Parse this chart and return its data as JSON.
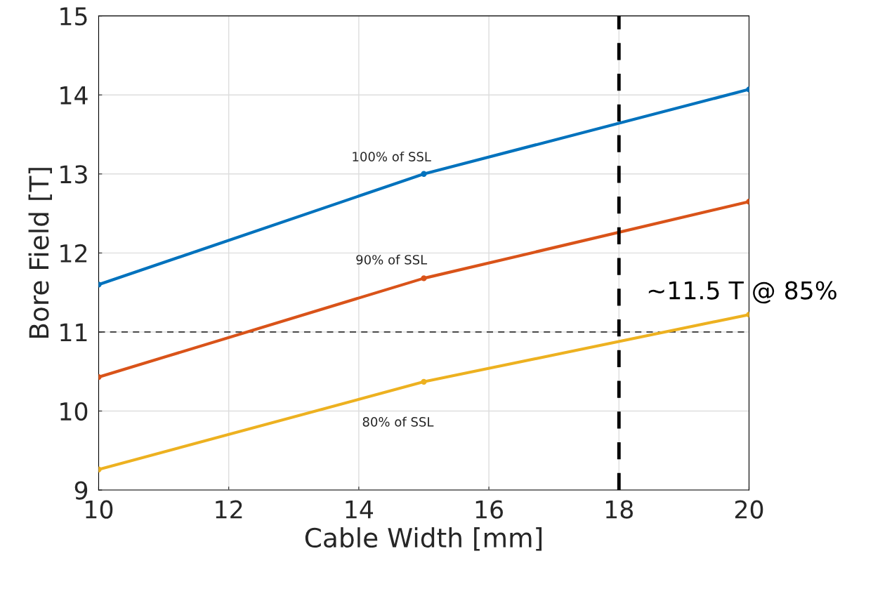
{
  "chart_data": {
    "type": "line",
    "xlabel": "Cable Width [mm]",
    "ylabel": "Bore Field [T]",
    "x": [
      10,
      15,
      20
    ],
    "series": [
      {
        "name": "100% of SSL",
        "color": "#0072bd",
        "values": [
          11.6,
          13.0,
          14.07
        ]
      },
      {
        "name": "90% of SSL",
        "color": "#d95319",
        "values": [
          10.43,
          11.68,
          12.65
        ]
      },
      {
        "name": "80% of SSL",
        "color": "#edb120",
        "values": [
          9.26,
          10.37,
          11.22
        ]
      }
    ],
    "xlim": [
      10,
      20
    ],
    "xticks": [
      10,
      12,
      14,
      16,
      18,
      20
    ],
    "ylim": [
      9,
      15
    ],
    "yticks": [
      9,
      10,
      11,
      12,
      13,
      14,
      15
    ],
    "grid": true,
    "marker": "circle",
    "line_style": "solid",
    "ref_lines": [
      {
        "axis": "y",
        "value": 11,
        "color": "#333333",
        "line_style": "dashed"
      },
      {
        "axis": "x",
        "value": 18,
        "color": "#000000",
        "line_style": "dashed"
      }
    ],
    "annotations": [
      {
        "text": "~11.5 T @ 85%",
        "x": 18,
        "y": 11.5
      }
    ]
  }
}
